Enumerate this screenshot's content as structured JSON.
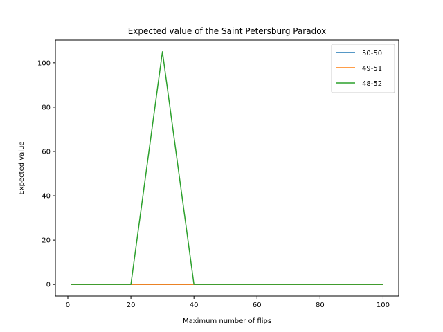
{
  "chart_data": {
    "type": "line",
    "title": "Expected value of the Saint Petersburg Paradox",
    "xlabel": "Maximum number of flips",
    "ylabel": "Expected value",
    "xlim": [
      -3.95,
      104.95
    ],
    "ylim": [
      -5.25,
      110.25
    ],
    "xticks": [
      0,
      20,
      40,
      60,
      80,
      100
    ],
    "yticks": [
      0,
      20,
      40,
      60,
      80,
      100
    ],
    "grid": false,
    "legend_position": "top-right",
    "x": [
      1,
      20,
      30,
      40,
      100
    ],
    "series": [
      {
        "name": "50-50",
        "color": "#1f77b4",
        "values": [
          0,
          0,
          0,
          0,
          0
        ]
      },
      {
        "name": "49-51",
        "color": "#ff7f0e",
        "values": [
          0,
          0,
          0,
          0,
          0
        ]
      },
      {
        "name": "48-52",
        "color": "#2ca02c",
        "values": [
          0,
          0,
          105,
          0,
          0
        ]
      }
    ]
  }
}
